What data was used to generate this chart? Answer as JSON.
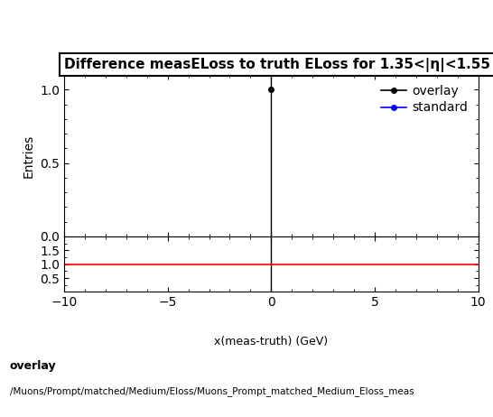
{
  "title": "Difference measELoss to truth ELoss for 1.35<|η|<1.55",
  "ylabel_main": "Entries",
  "xlabel": "x(meas-truth) (GeV)",
  "xlim": [
    -10,
    10
  ],
  "ylim_main": [
    0,
    1.1
  ],
  "ylim_ratio": [
    0,
    2.0
  ],
  "overlay_x": [
    0
  ],
  "overlay_y": [
    1
  ],
  "standard_x": [],
  "standard_y": [],
  "overlay_color": "#000000",
  "standard_color": "#0000ff",
  "ratio_line_color": "#ff0000",
  "ratio_line_y": 1.0,
  "vline_x": 0,
  "footer_line1": "overlay",
  "footer_line2": "/Muons/Prompt/matched/Medium/Eloss/Muons_Prompt_matched_Medium_Eloss_meas",
  "ratio_yticks": [
    0.5,
    1.0,
    1.5
  ],
  "main_yticks": [
    0,
    0.5,
    1
  ],
  "xticks": [
    -10,
    -5,
    0,
    5,
    10
  ],
  "legend_entries": [
    "overlay",
    "standard"
  ],
  "background_color": "#ffffff",
  "title_fontsize": 11,
  "axis_fontsize": 10,
  "legend_fontsize": 10
}
